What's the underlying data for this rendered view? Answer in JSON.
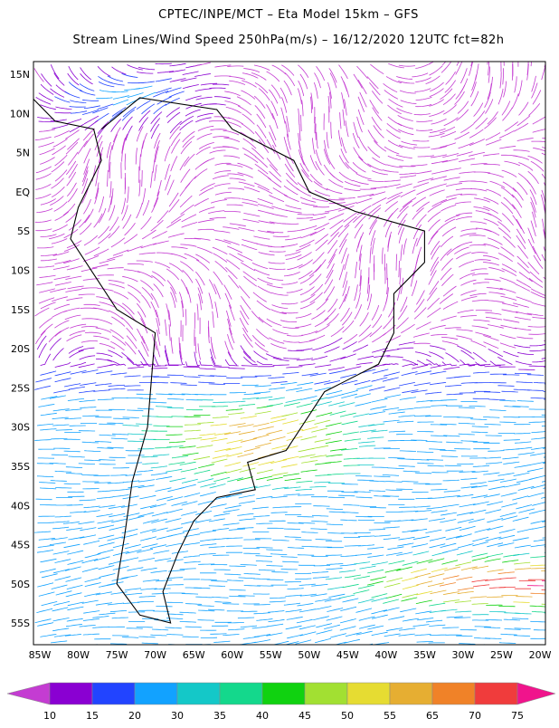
{
  "header": {
    "title": "CPTEC/INPE/MCT –  Eta Model 15km – GFS",
    "subtitle": "Stream Lines/Wind Speed 250hPa(m/s) – 16/12/2020 12UTC fct=82h"
  },
  "map": {
    "lat_labels": [
      "15N",
      "10N",
      "5N",
      "EQ",
      "5S",
      "10S",
      "15S",
      "20S",
      "25S",
      "30S",
      "35S",
      "40S",
      "45S",
      "50S",
      "55S"
    ],
    "lon_labels": [
      "85W",
      "80W",
      "75W",
      "70W",
      "65W",
      "60W",
      "55W",
      "50W",
      "45W",
      "40W",
      "35W",
      "30W",
      "25W",
      "20W"
    ]
  },
  "colorbar": {
    "ticks": [
      10,
      15,
      20,
      30,
      35,
      40,
      45,
      50,
      55,
      65,
      70,
      75
    ],
    "colors": [
      "#8a00d2",
      "#2244ff",
      "#12a2ff",
      "#14c8c8",
      "#14d88c",
      "#10d210",
      "#a2e032",
      "#e6dc32",
      "#e6ae32",
      "#f08228",
      "#f03c3c"
    ],
    "under_color": "#c43cd2",
    "over_color": "#f0148c"
  }
}
